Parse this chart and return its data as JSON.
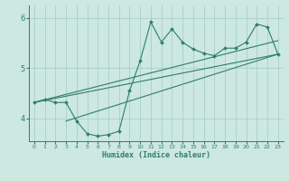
{
  "xlabel": "Humidex (Indice chaleur)",
  "bg_color": "#cce8e0",
  "line_color": "#2e7d6e",
  "grid_color": "#aacfc8",
  "xlim": [
    -0.5,
    23.5
  ],
  "ylim": [
    3.55,
    6.25
  ],
  "yticks": [
    4,
    5,
    6
  ],
  "xticks": [
    0,
    1,
    2,
    3,
    4,
    5,
    6,
    7,
    8,
    9,
    10,
    11,
    12,
    13,
    14,
    15,
    16,
    17,
    18,
    19,
    20,
    21,
    22,
    23
  ],
  "curve_x": [
    0,
    1,
    2,
    3,
    4,
    5,
    6,
    7,
    8,
    9,
    10,
    11,
    12,
    13,
    14,
    15,
    16,
    17,
    18,
    19,
    20,
    21,
    22,
    23
  ],
  "curve_y": [
    4.32,
    4.38,
    4.32,
    4.32,
    3.95,
    3.7,
    3.65,
    3.68,
    3.75,
    4.55,
    5.15,
    5.92,
    5.52,
    5.78,
    5.52,
    5.38,
    5.3,
    5.25,
    5.4,
    5.4,
    5.52,
    5.88,
    5.82,
    5.28
  ],
  "line1_x": [
    0,
    23
  ],
  "line1_y": [
    4.32,
    5.28
  ],
  "line2_x": [
    0,
    23
  ],
  "line2_y": [
    4.32,
    5.55
  ],
  "line3_x": [
    3,
    23
  ],
  "line3_y": [
    3.95,
    5.28
  ]
}
